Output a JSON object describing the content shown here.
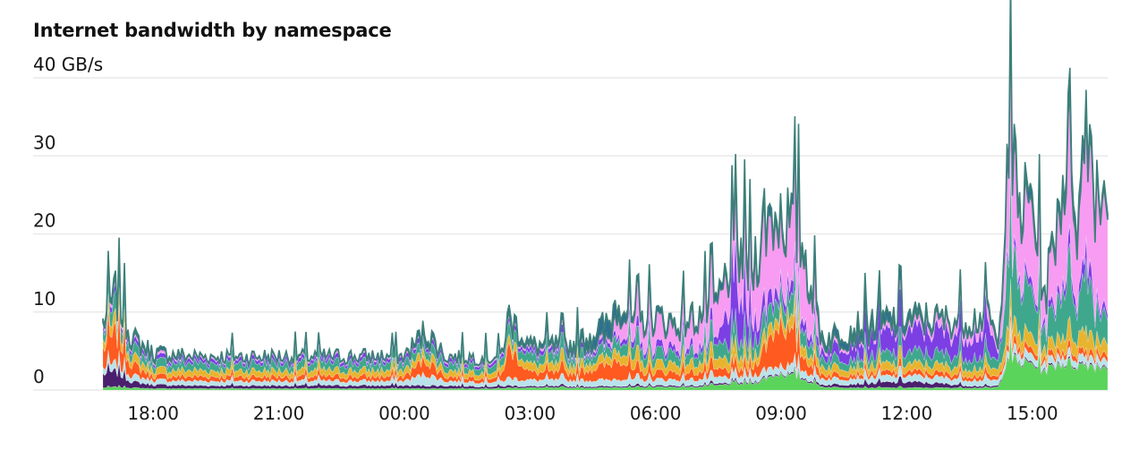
{
  "chart_data": {
    "type": "area",
    "stacked": true,
    "title": "Internet bandwidth by namespace",
    "y_unit_label": "40 GB/s",
    "ylabel": "",
    "xlabel": "",
    "ylim": [
      0,
      40
    ],
    "y_ticks": [
      0,
      10,
      20,
      30,
      40
    ],
    "y_tick_labels": [
      "0",
      "10",
      "20",
      "30",
      ""
    ],
    "x_range_hours": [
      16.8,
      40.8
    ],
    "x_ticks": [
      "18:00",
      "21:00",
      "00:00",
      "03:00",
      "06:00",
      "09:00",
      "12:00",
      "15:00"
    ],
    "grid": true,
    "legend": "none",
    "x_hours": [
      16.8,
      17.1,
      17.5,
      18.0,
      19.0,
      20.0,
      21.0,
      22.0,
      23.0,
      24.0,
      24.5,
      25.0,
      26.0,
      26.3,
      26.5,
      27.0,
      28.0,
      28.9,
      29.1,
      29.5,
      29.9,
      30.5,
      31.0,
      31.5,
      31.8,
      32.0,
      32.3,
      32.6,
      33.0,
      33.5,
      34.0,
      35.0,
      36.0,
      37.0,
      37.5,
      38.0,
      38.2,
      38.4,
      38.7,
      39.0,
      39.3,
      39.6,
      39.9,
      40.1,
      40.3,
      40.5,
      40.8
    ],
    "total_gbps": [
      9,
      13,
      7,
      5,
      4.5,
      4.5,
      4.5,
      4.5,
      4.5,
      4.5,
      8,
      4.5,
      4.5,
      4.5,
      10,
      6,
      6,
      8,
      12,
      9,
      10,
      9,
      10,
      12,
      17,
      19,
      16,
      24,
      26,
      21,
      7,
      7,
      9,
      9,
      9,
      10,
      5,
      35,
      24,
      26,
      12,
      24,
      36,
      22,
      40,
      27,
      28
    ],
    "series": [
      {
        "color": "#5ad45a",
        "values": [
          0.3,
          0.4,
          0.3,
          0.2,
          0.2,
          0.2,
          0.2,
          0.2,
          0.2,
          0.2,
          0.2,
          0.2,
          0.2,
          0.2,
          0.3,
          0.3,
          0.3,
          0.3,
          0.4,
          0.3,
          0.4,
          0.4,
          0.4,
          0.6,
          0.8,
          0.8,
          0.8,
          1.5,
          2.2,
          1.5,
          0.4,
          0.3,
          0.3,
          0.3,
          0.3,
          0.3,
          0.4,
          4.5,
          3.5,
          3.5,
          2.5,
          3.5,
          3.5,
          3.2,
          3.5,
          3.2,
          3.2
        ]
      },
      {
        "color": "#4a1f6e",
        "values": [
          1.8,
          2.0,
          0.8,
          0.5,
          0.4,
          0.4,
          0.4,
          0.4,
          0.4,
          0.4,
          0.4,
          0.4,
          0.3,
          0.3,
          0.3,
          0.2,
          0.2,
          0.2,
          0.2,
          0.2,
          0.2,
          0.2,
          0.2,
          0.2,
          0.2,
          0.2,
          0.2,
          0.2,
          0.2,
          0.2,
          0.3,
          0.6,
          0.8,
          0.5,
          0.3,
          0.2,
          0.2,
          0.2,
          0.2,
          0.2,
          0.2,
          0.2,
          0.2,
          0.2,
          0.2,
          0.2,
          0.2
        ]
      },
      {
        "color": "#b9e3ea",
        "values": [
          0.8,
          1.0,
          0.8,
          0.6,
          0.6,
          0.6,
          0.6,
          0.6,
          0.6,
          0.6,
          1.5,
          0.6,
          0.6,
          0.6,
          1.0,
          0.8,
          0.8,
          0.8,
          1.0,
          0.8,
          0.8,
          0.8,
          0.8,
          0.8,
          0.8,
          0.8,
          0.8,
          1.0,
          1.0,
          1.0,
          0.8,
          0.8,
          0.8,
          0.8,
          0.8,
          0.8,
          0.6,
          1.0,
          1.0,
          1.0,
          0.8,
          1.0,
          1.0,
          1.0,
          1.0,
          1.0,
          1.0
        ]
      },
      {
        "color": "#ff5a1f",
        "values": [
          2.5,
          4.0,
          1.5,
          0.6,
          0.6,
          0.6,
          0.6,
          0.6,
          0.6,
          0.6,
          2.0,
          0.6,
          0.6,
          0.6,
          4.0,
          1.0,
          1.0,
          2.0,
          3.0,
          1.0,
          1.0,
          1.0,
          1.0,
          1.0,
          1.0,
          1.0,
          1.0,
          3.0,
          6.0,
          2.0,
          0.6,
          0.6,
          0.6,
          0.6,
          0.6,
          0.6,
          0.4,
          1.0,
          0.8,
          0.8,
          0.6,
          0.8,
          0.8,
          0.8,
          0.8,
          0.8,
          0.8
        ]
      },
      {
        "color": "#e8b42e",
        "values": [
          1.0,
          1.5,
          1.0,
          0.8,
          0.8,
          0.8,
          0.8,
          0.8,
          0.8,
          0.8,
          1.0,
          0.8,
          0.8,
          0.8,
          1.0,
          1.0,
          1.0,
          1.0,
          1.5,
          1.2,
          1.2,
          1.2,
          1.2,
          1.2,
          1.5,
          1.5,
          1.2,
          1.5,
          1.5,
          1.5,
          1.0,
          1.0,
          1.0,
          1.0,
          1.0,
          1.0,
          0.8,
          2.5,
          1.8,
          1.8,
          1.2,
          1.8,
          2.5,
          1.8,
          3.0,
          1.8,
          1.8
        ]
      },
      {
        "color": "#3fa88c",
        "values": [
          1.2,
          2.0,
          1.2,
          1.0,
          1.0,
          1.0,
          1.0,
          1.0,
          1.0,
          1.0,
          1.2,
          1.0,
          1.0,
          1.0,
          1.5,
          1.2,
          1.2,
          1.2,
          1.8,
          1.5,
          1.5,
          1.5,
          1.5,
          1.8,
          2.0,
          2.0,
          1.8,
          2.5,
          2.5,
          2.2,
          1.2,
          1.2,
          1.5,
          1.5,
          1.5,
          1.5,
          1.0,
          10.0,
          6.0,
          6.0,
          2.5,
          5.0,
          8.0,
          4.0,
          9.0,
          4.0,
          4.0
        ]
      },
      {
        "color": "#7b3fe4",
        "values": [
          0.5,
          0.8,
          0.6,
          0.5,
          0.5,
          0.5,
          0.5,
          0.5,
          0.5,
          0.5,
          0.6,
          0.5,
          0.5,
          0.5,
          0.6,
          0.6,
          0.6,
          0.6,
          0.8,
          0.8,
          0.8,
          0.8,
          0.8,
          1.0,
          5.5,
          6.0,
          3.0,
          2.0,
          1.5,
          1.5,
          1.0,
          2.5,
          3.0,
          3.0,
          3.0,
          3.5,
          0.6,
          1.0,
          1.0,
          1.0,
          0.8,
          1.0,
          2.0,
          1.0,
          3.0,
          1.0,
          1.0
        ]
      },
      {
        "color": "#f79cf2",
        "values": [
          0.4,
          0.6,
          0.4,
          0.4,
          0.3,
          0.3,
          0.3,
          0.3,
          0.3,
          0.3,
          0.3,
          0.3,
          0.3,
          0.3,
          0.4,
          0.4,
          0.4,
          0.6,
          2.5,
          2.5,
          3.5,
          2.5,
          3.5,
          4.5,
          4.5,
          5.0,
          6.0,
          10.0,
          8.0,
          9.0,
          0.6,
          0.6,
          0.8,
          1.3,
          1.5,
          1.6,
          0.4,
          13.0,
          8.4,
          10.2,
          3.1,
          9.4,
          14.4,
          8.3,
          17.2,
          14.1,
          15.1
        ]
      },
      {
        "color": "#2f6f8f",
        "values": [
          0.5,
          0.7,
          0.4,
          0.4,
          0.1,
          0.1,
          0.1,
          0.1,
          0.1,
          0.1,
          0.8,
          0.1,
          0.1,
          0.1,
          0.9,
          0.5,
          0.5,
          2.3,
          1.8,
          0.5,
          0.6,
          0.6,
          0.6,
          0.9,
          0.7,
          1.7,
          1.2,
          1.3,
          1.1,
          1.1,
          0.9,
          1.4,
          1.0,
          0.3,
          0.5,
          0.5,
          0.6,
          2.0,
          1.3,
          1.5,
          0.3,
          1.3,
          2.6,
          1.7,
          2.3,
          0.9,
          0.9
        ]
      }
    ]
  }
}
